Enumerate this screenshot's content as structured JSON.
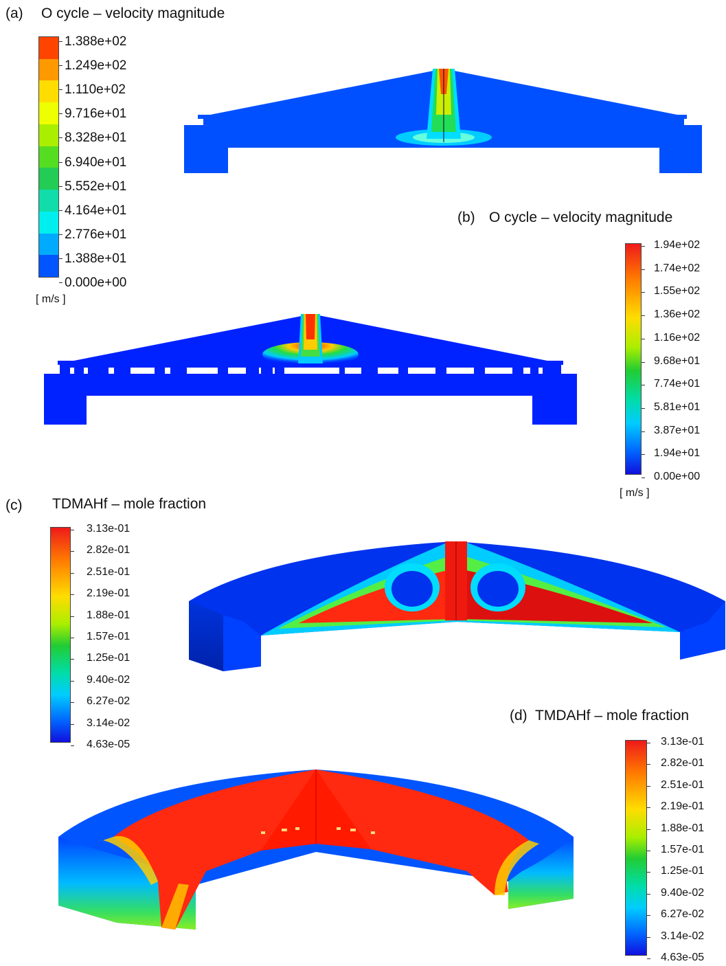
{
  "panels": {
    "a": {
      "label": "(a)",
      "title": "O cycle – velocity magnitude",
      "colorbar": {
        "ticks": [
          "1.388e+02",
          "1.249e+02",
          "1.110e+02",
          "9.716e+01",
          "8.328e+01",
          "6.940e+01",
          "5.552e+01",
          "4.164e+01",
          "2.776e+01",
          "1.388e+01",
          "0.000e+00"
        ],
        "unit": "[ m/s ]",
        "colors": [
          "#ff4400",
          "#ff9900",
          "#ffdd00",
          "#eeff00",
          "#aaee00",
          "#55dd22",
          "#22cc55",
          "#11ddaa",
          "#00eeee",
          "#00aaff",
          "#0055ff"
        ]
      }
    },
    "b": {
      "label": "(b)",
      "title": "O cycle – velocity magnitude",
      "colorbar": {
        "ticks": [
          "1.94e+02",
          "1.74e+02",
          "1.55e+02",
          "1.36e+02",
          "1.16e+02",
          "9.68e+01",
          "7.74e+01",
          "5.81e+01",
          "3.87e+01",
          "1.94e+01",
          "0.00e+00"
        ],
        "unit": "[ m/s ]"
      }
    },
    "c": {
      "label": "(c)",
      "title": "TDMAHf – mole fraction",
      "colorbar": {
        "ticks": [
          "3.13e-01",
          "2.82e-01",
          "2.51e-01",
          "2.19e-01",
          "1.88e-01",
          "1.57e-01",
          "1.25e-01",
          "9.40e-02",
          "6.27e-02",
          "3.14e-02",
          "4.63e-05"
        ]
      }
    },
    "d": {
      "label": "(d)",
      "title": "TMDAHf – mole fraction",
      "colorbar": {
        "ticks": [
          "3.13e-01",
          "2.82e-01",
          "2.51e-01",
          "2.19e-01",
          "1.88e-01",
          "1.57e-01",
          "1.25e-01",
          "9.40e-02",
          "6.27e-02",
          "3.14e-02",
          "4.63e-05"
        ]
      }
    }
  },
  "colors": {
    "low": "#0044ff",
    "high": "#ff2200",
    "rainbow": [
      "#ff1a00",
      "#ff7a00",
      "#ffcc00",
      "#ddff00",
      "#66ee00",
      "#00dd33",
      "#00eeaa",
      "#00ddff",
      "#0099ff",
      "#0044ff",
      "#0000cc"
    ]
  }
}
